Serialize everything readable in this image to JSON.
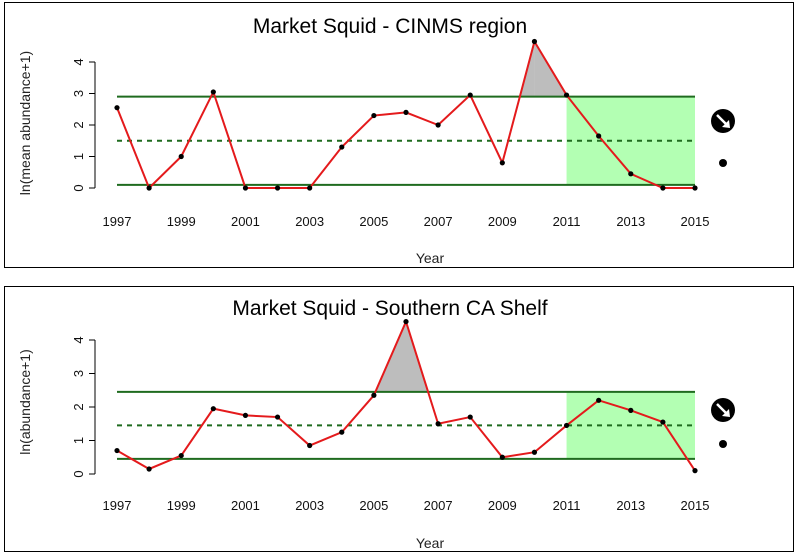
{
  "chart_data": [
    {
      "type": "line",
      "title": "Market Squid - CINMS region",
      "xlabel": "Year",
      "ylabel": "ln(mean abundance+1)",
      "x": [
        1997,
        1998,
        1999,
        2000,
        2001,
        2002,
        2003,
        2004,
        2005,
        2006,
        2007,
        2008,
        2009,
        2010,
        2011,
        2012,
        2013,
        2014,
        2015
      ],
      "y": [
        2.55,
        0.0,
        1.0,
        3.05,
        0.0,
        0.0,
        0.0,
        1.3,
        2.3,
        2.4,
        2.0,
        2.95,
        0.8,
        4.65,
        2.95,
        1.65,
        0.45,
        0.0,
        0.0
      ],
      "xticks": [
        "1997",
        "1999",
        "2001",
        "2003",
        "2005",
        "2007",
        "2009",
        "2011",
        "2013",
        "2015"
      ],
      "yticks": [
        "0",
        "1",
        "2",
        "3",
        "4"
      ],
      "xlim": [
        1997,
        2015
      ],
      "ylim": [
        0,
        4.7
      ],
      "mean": 1.5,
      "upper_sd": 2.9,
      "lower_sd": 0.1,
      "recent_window": [
        2011,
        2015
      ],
      "trend_symbol": "down-arrow-circle-icon",
      "mean_symbol": "dot-icon",
      "colors": {
        "series": "#e41a1c",
        "sd_line": "#1f6b1f",
        "mean_line": "#1f6b1f",
        "recent_fill": "#b3ffb3",
        "exceed_fill": "#bdbdbd",
        "points": "#000000"
      }
    },
    {
      "type": "line",
      "title": "Market Squid - Southern CA  Shelf",
      "xlabel": "Year",
      "ylabel": "ln(abundance+1)",
      "x": [
        1997,
        1998,
        1999,
        2000,
        2001,
        2002,
        2003,
        2004,
        2005,
        2006,
        2007,
        2008,
        2009,
        2010,
        2011,
        2012,
        2013,
        2014,
        2015
      ],
      "y": [
        0.7,
        0.15,
        0.55,
        1.95,
        1.75,
        1.7,
        0.85,
        1.25,
        2.35,
        4.55,
        1.5,
        1.7,
        0.5,
        0.65,
        1.45,
        2.2,
        1.9,
        1.55,
        0.1
      ],
      "xticks": [
        "1997",
        "1999",
        "2001",
        "2003",
        "2005",
        "2007",
        "2009",
        "2011",
        "2013",
        "2015"
      ],
      "yticks": [
        "0",
        "1",
        "2",
        "3",
        "4"
      ],
      "xlim": [
        1997,
        2015
      ],
      "ylim": [
        0,
        4.6
      ],
      "mean": 1.45,
      "upper_sd": 2.45,
      "lower_sd": 0.45,
      "recent_window": [
        2011,
        2015
      ],
      "trend_symbol": "down-arrow-circle-icon",
      "mean_symbol": "dot-icon",
      "colors": {
        "series": "#e41a1c",
        "sd_line": "#1f6b1f",
        "mean_line": "#1f6b1f",
        "recent_fill": "#b3ffb3",
        "exceed_fill": "#bdbdbd",
        "points": "#000000"
      }
    }
  ]
}
